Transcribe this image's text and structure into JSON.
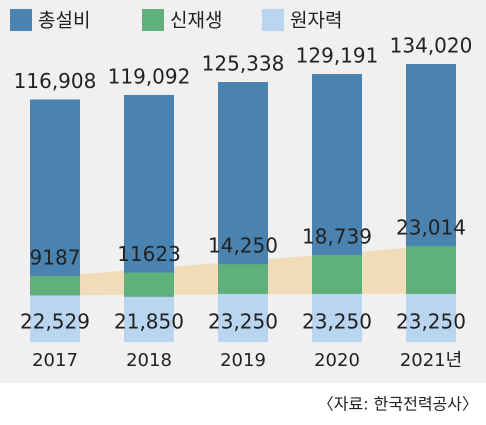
{
  "chart_data": {
    "type": "bar",
    "categories": [
      "2017",
      "2018",
      "2019",
      "2020",
      "2021년"
    ],
    "series": [
      {
        "name": "총설비",
        "color": "#4a82b0",
        "values": [
          116908,
          119092,
          125338,
          129191,
          134020
        ],
        "value_labels": [
          "116,908",
          "119,092",
          "125,338",
          "129,191",
          "134,020"
        ]
      },
      {
        "name": "신재생",
        "color": "#5fb07a",
        "values": [
          9187,
          11623,
          14250,
          18739,
          23014
        ],
        "value_labels": [
          "9187",
          "11623",
          "14,250",
          "18,739",
          "23,014"
        ]
      },
      {
        "name": "원자력",
        "color": "#b9d5ef",
        "values": [
          22529,
          21850,
          23250,
          23250,
          23250
        ],
        "value_labels": [
          "22,529",
          "21,850",
          "23,250",
          "23,250",
          "23,250"
        ]
      }
    ],
    "source": "〈자료: 한국전력공사〉"
  }
}
